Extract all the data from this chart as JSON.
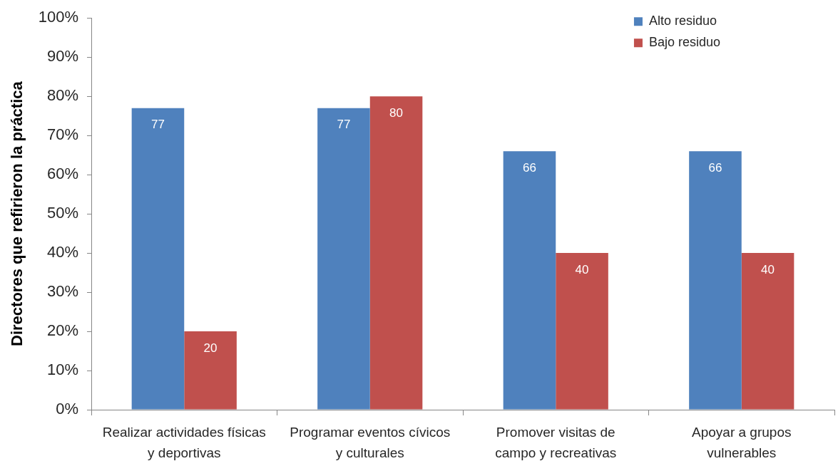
{
  "chart_data": {
    "type": "bar",
    "ylabel": "Directores que refirieron la práctica",
    "categories": [
      "Realizar actividades físicas\ny deportivas",
      "Programar eventos cívicos\ny culturales",
      "Promover visitas de\ncampo y recreativas",
      "Apoyar a grupos\nvulnerables"
    ],
    "series": [
      {
        "name": "Alto residuo",
        "color": "#4f81bd",
        "values": [
          77,
          77,
          66,
          66
        ]
      },
      {
        "name": "Bajo residuo",
        "color": "#c0504d",
        "values": [
          20,
          80,
          40,
          40
        ]
      }
    ],
    "ylim": [
      0,
      100
    ],
    "yticks": [
      {
        "value": 0,
        "label": "0%"
      },
      {
        "value": 10,
        "label": "10%"
      },
      {
        "value": 20,
        "label": "20%"
      },
      {
        "value": 30,
        "label": "30%"
      },
      {
        "value": 40,
        "label": "40%"
      },
      {
        "value": 50,
        "label": "50%"
      },
      {
        "value": 60,
        "label": "60%"
      },
      {
        "value": 70,
        "label": "70%"
      },
      {
        "value": 80,
        "label": "80%"
      },
      {
        "value": 90,
        "label": "90%"
      },
      {
        "value": 100,
        "label": "100%"
      }
    ],
    "legend": "top right",
    "data_labels": true
  }
}
